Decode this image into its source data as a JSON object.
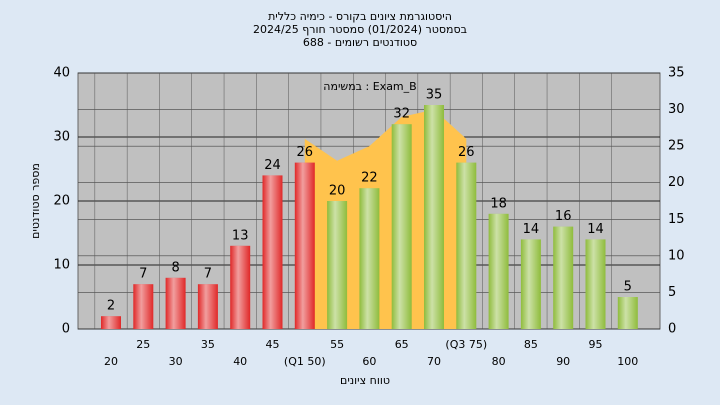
{
  "chart_data": {
    "type": "bar",
    "title_lines": [
      "היסטוגרמת ציונים בקורס - כימיה כללית",
      "בסמסטר  (01/2024)  סמסטר חורף 2024/25",
      "סטודנטים רשומים - 688"
    ],
    "annotation": "במשימה : Exam_B",
    "x_label": "טווח ציונים",
    "y_label": "מספר סטודנטים",
    "categories": [
      "20",
      "25",
      "30",
      "35",
      "40",
      "45",
      "(Q1 50)",
      "55",
      "60",
      "65",
      "70",
      "(Q3 75)",
      "80",
      "85",
      "90",
      "95",
      "100"
    ],
    "series": [
      {
        "type": "bar",
        "values": [
          2,
          7,
          8,
          7,
          13,
          24,
          26,
          20,
          22,
          32,
          35,
          26,
          18,
          14,
          16,
          14,
          5
        ],
        "colors": [
          "#e02828",
          "#e02828",
          "#e02828",
          "#e02828",
          "#e02828",
          "#e02828",
          "#e02828",
          "#8fbc3c",
          "#8fbc3c",
          "#8fbc3c",
          "#8fbc3c",
          "#8fbc3c",
          "#8fbc3c",
          "#8fbc3c",
          "#8fbc3c",
          "#8fbc3c",
          "#8fbc3c"
        ]
      },
      {
        "type": "area",
        "axis": "y2",
        "color": "#ffc34d",
        "values": [
          null,
          null,
          null,
          null,
          null,
          null,
          26,
          23,
          25,
          29,
          30,
          26,
          null,
          null,
          null,
          null,
          null
        ]
      }
    ],
    "ylim": [
      0,
      40
    ],
    "yticks": [
      0,
      10,
      20,
      30,
      40
    ],
    "y2lim": [
      0,
      35
    ],
    "y2ticks": [
      0,
      5,
      10,
      15,
      20,
      25,
      30,
      35
    ],
    "grid": true
  }
}
